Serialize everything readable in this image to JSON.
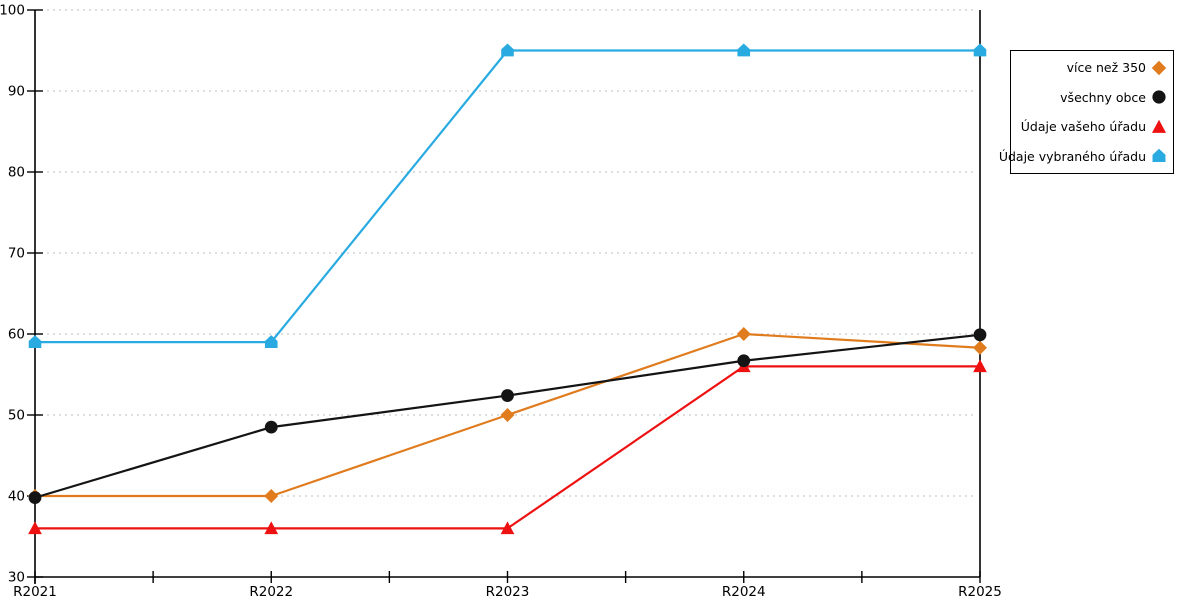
{
  "chart_data": {
    "type": "line",
    "title": "",
    "xlabel": "",
    "ylabel": "",
    "x": [
      "R2021",
      "R2022",
      "R2023",
      "R2024",
      "R2025"
    ],
    "ylim": [
      30,
      100
    ],
    "ytick_step": 10,
    "yticks": [
      30,
      40,
      50,
      60,
      70,
      80,
      90,
      100
    ],
    "grid": "horizontal-dashed",
    "grid_color": "#bdbdbd",
    "axis_color": "#000000",
    "legend_position": "right-outside",
    "x_minor_ticks": "midpoints",
    "series": [
      {
        "name": "více než 350",
        "color": "#e07c1e",
        "marker": "diamond",
        "values": [
          40,
          40,
          50,
          60,
          58.3
        ]
      },
      {
        "name": "všechny obce",
        "color": "#141414",
        "marker": "circle",
        "values": [
          39.8,
          48.5,
          52.4,
          56.7,
          59.9
        ]
      },
      {
        "name": "Údaje vašeho úřadu",
        "color": "#ee1111",
        "marker": "triangle-up",
        "values": [
          36,
          36,
          36,
          56,
          56
        ]
      },
      {
        "name": "Údaje vybraného úřadu",
        "color": "#29abe2",
        "marker": "house",
        "values": [
          59,
          59,
          95,
          95,
          95
        ]
      }
    ],
    "draw_order": [
      0,
      2,
      3,
      1
    ]
  }
}
